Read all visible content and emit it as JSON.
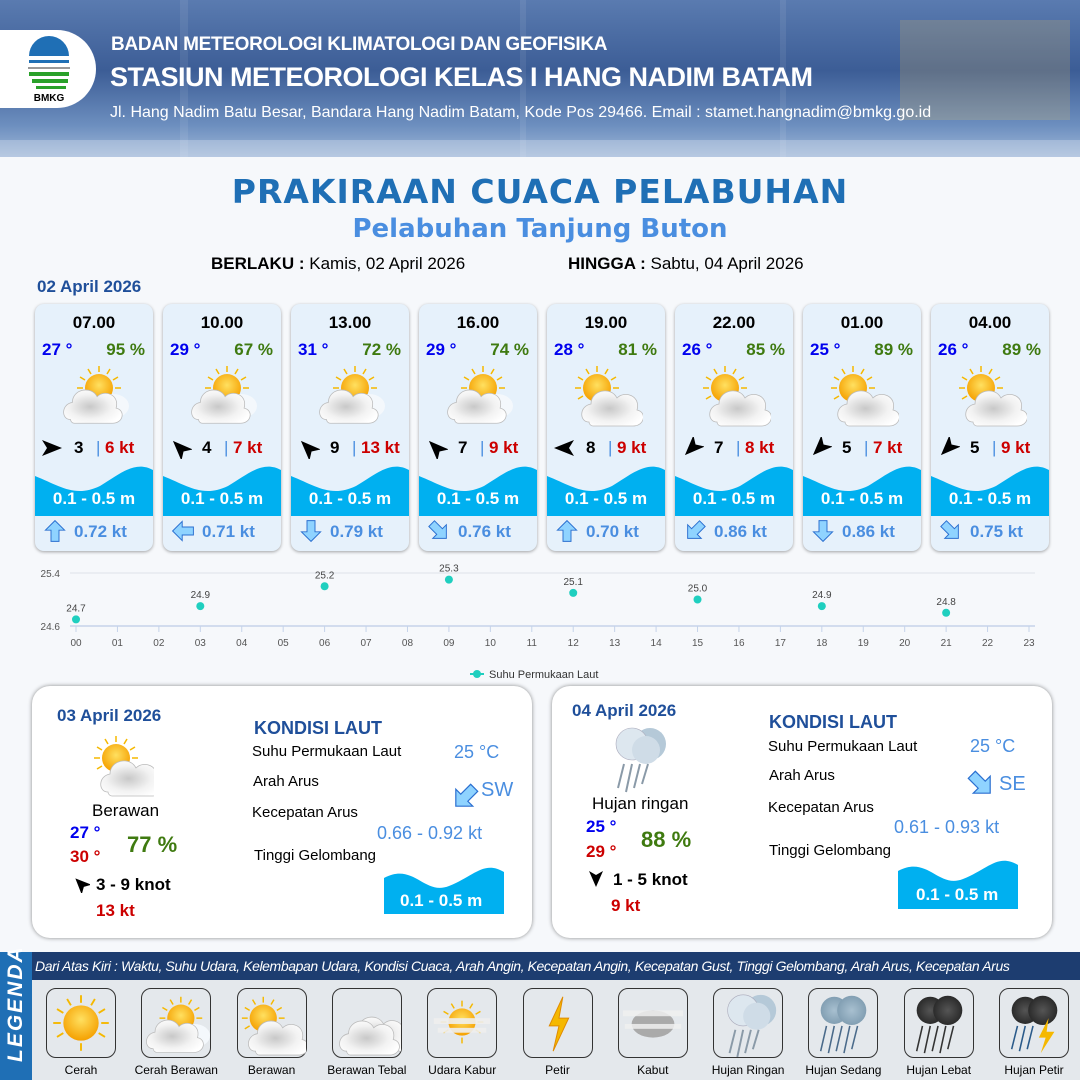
{
  "header": {
    "logo_text": "BMKG",
    "agency": "BADAN METEOROLOGI KLIMATOLOGI DAN GEOFISIKA",
    "station": "STASIUN METEOROLOGI KELAS I HANG NADIM BATAM",
    "address": "Jl. Hang Nadim Batu Besar, Bandara Hang Nadim Batam, Kode Pos 29466. Email : stamet.hangnadim@bmkg.go.id"
  },
  "title": "PRAKIRAAN CUACA PELABUHAN",
  "subtitle": "Pelabuhan Tanjung Buton",
  "validity": {
    "from_label": "BERLAKU :",
    "from_value": "Kamis, 02 April 2026",
    "to_label": "HINGGA :",
    "to_value": "Sabtu, 04 April 2026"
  },
  "day1": {
    "date": "02 April 2026",
    "cards": [
      {
        "time": "07.00",
        "temp": "27 °",
        "rh": "95 %",
        "weather": "cerah-berawan",
        "wind_dir": "E",
        "wind_speed": "3",
        "gust": "6 kt",
        "wave": "0.1 - 0.5 m",
        "current_dir": "N",
        "current": "0.72 kt"
      },
      {
        "time": "10.00",
        "temp": "29 °",
        "rh": "67 %",
        "weather": "cerah-berawan",
        "wind_dir": "NW",
        "wind_speed": "4",
        "gust": "7 kt",
        "wave": "0.1 - 0.5 m",
        "current_dir": "W",
        "current": "0.71 kt"
      },
      {
        "time": "13.00",
        "temp": "31 °",
        "rh": "72 %",
        "weather": "cerah-berawan",
        "wind_dir": "NW",
        "wind_speed": "9",
        "gust": "13 kt",
        "wave": "0.1 - 0.5 m",
        "current_dir": "S",
        "current": "0.79 kt"
      },
      {
        "time": "16.00",
        "temp": "29 °",
        "rh": "74 %",
        "weather": "cerah-berawan",
        "wind_dir": "NW",
        "wind_speed": "7",
        "gust": "9 kt",
        "wave": "0.1 - 0.5 m",
        "current_dir": "SE",
        "current": "0.76 kt"
      },
      {
        "time": "19.00",
        "temp": "28 °",
        "rh": "81 %",
        "weather": "berawan",
        "wind_dir": "W",
        "wind_speed": "8",
        "gust": "9 kt",
        "wave": "0.1 - 0.5 m",
        "current_dir": "N",
        "current": "0.70 kt"
      },
      {
        "time": "22.00",
        "temp": "26 °",
        "rh": "85 %",
        "weather": "berawan",
        "wind_dir": "SW",
        "wind_speed": "7",
        "gust": "8 kt",
        "wave": "0.1 - 0.5 m",
        "current_dir": "SW",
        "current": "0.86 kt"
      },
      {
        "time": "01.00",
        "temp": "25 °",
        "rh": "89 %",
        "weather": "berawan",
        "wind_dir": "SW",
        "wind_speed": "5",
        "gust": "7 kt",
        "wave": "0.1 - 0.5 m",
        "current_dir": "S",
        "current": "0.86 kt"
      },
      {
        "time": "04.00",
        "temp": "26 °",
        "rh": "89 %",
        "weather": "berawan",
        "wind_dir": "SW",
        "wind_speed": "5",
        "gust": "9 kt",
        "wave": "0.1 - 0.5 m",
        "current_dir": "SE",
        "current": "0.75 kt"
      }
    ]
  },
  "chart_data": {
    "type": "scatter",
    "x": [
      0,
      3,
      6,
      9,
      12,
      15,
      18,
      21
    ],
    "values": [
      24.7,
      24.9,
      25.2,
      25.3,
      25.1,
      25.0,
      24.9,
      24.8
    ],
    "data_labels": [
      "24.7",
      "24.9",
      "25.2",
      "25.3",
      "25.1",
      "25.0",
      "24.9",
      "24.8"
    ],
    "x_ticks": [
      "00",
      "01",
      "02",
      "03",
      "04",
      "05",
      "06",
      "07",
      "08",
      "09",
      "10",
      "11",
      "12",
      "13",
      "14",
      "15",
      "16",
      "17",
      "18",
      "19",
      "20",
      "21",
      "22",
      "23"
    ],
    "y_ticks": [
      "24.6",
      "25.4"
    ],
    "ylim": [
      24.6,
      25.4
    ],
    "xlim": [
      0,
      23
    ],
    "series_name": "Suhu Permukaan Laut",
    "legend": "bottom-center",
    "color": "#1fcfbf",
    "grid": "horizontal"
  },
  "day2": {
    "date": "03 April 2026",
    "weather": "berawan",
    "condition": "Berawan",
    "tmin": "27 °",
    "tmax": "30 °",
    "rh": "77 %",
    "wind_dir": "NW",
    "wind": "3  - 9 knot",
    "gust": "13 kt",
    "sea": {
      "heading": "KONDISI LAUT",
      "sst_label": "Suhu Permukaan Laut",
      "sst": "25 °C",
      "dir_label": "Arah Arus",
      "dir": "SW",
      "speed_label": "Kecepatan Arus",
      "speed": "0.66  - 0.92 kt",
      "wave_label": "Tinggi Gelombang",
      "wave": "0.1 - 0.5 m"
    }
  },
  "day3": {
    "date": "04 April 2026",
    "weather": "hujan-ringan",
    "condition": "Hujan ringan",
    "tmin": "25 °",
    "tmax": "29 °",
    "rh": "88 %",
    "wind_dir": "S",
    "wind": "1  - 5 knot",
    "gust": "9 kt",
    "sea": {
      "heading": "KONDISI LAUT",
      "sst_label": "Suhu Permukaan Laut",
      "sst": "25 °C",
      "dir_label": "Arah Arus",
      "dir": "SE",
      "speed_label": "Kecepatan Arus",
      "speed": "0.61  - 0.93 kt",
      "wave_label": "Tinggi Gelombang",
      "wave": "0.1 - 0.5 m"
    }
  },
  "legend": {
    "title": "LEGENDA",
    "description": "Dari Atas Kiri : Waktu, Suhu Udara, Kelembapan Udara, Kondisi Cuaca, Arah Angin, Kecepatan Angin, Kecepatan Gust, Tinggi Gelombang, Arah Arus, Kecepatan Arus",
    "items": [
      {
        "label": "Cerah",
        "icon": "cerah"
      },
      {
        "label": "Cerah Berawan",
        "icon": "cerah-berawan"
      },
      {
        "label": "Berawan",
        "icon": "berawan"
      },
      {
        "label": "Berawan Tebal",
        "icon": "berawan-tebal"
      },
      {
        "label": "Udara Kabur",
        "icon": "udara-kabur"
      },
      {
        "label": "Petir",
        "icon": "petir"
      },
      {
        "label": "Kabut",
        "icon": "kabut"
      },
      {
        "label": "Hujan Ringan",
        "icon": "hujan-ringan"
      },
      {
        "label": "Hujan Sedang",
        "icon": "hujan-sedang"
      },
      {
        "label": "Hujan Lebat",
        "icon": "hujan-lebat"
      },
      {
        "label": "Hujan Petir",
        "icon": "hujan-petir"
      }
    ]
  },
  "colors": {
    "brand": "#1f6fb5",
    "wave": "#00b0f0",
    "temp": "#0000ee",
    "rh": "#3f7a10",
    "gust": "#cc0000",
    "current": "#4a8ee0"
  }
}
